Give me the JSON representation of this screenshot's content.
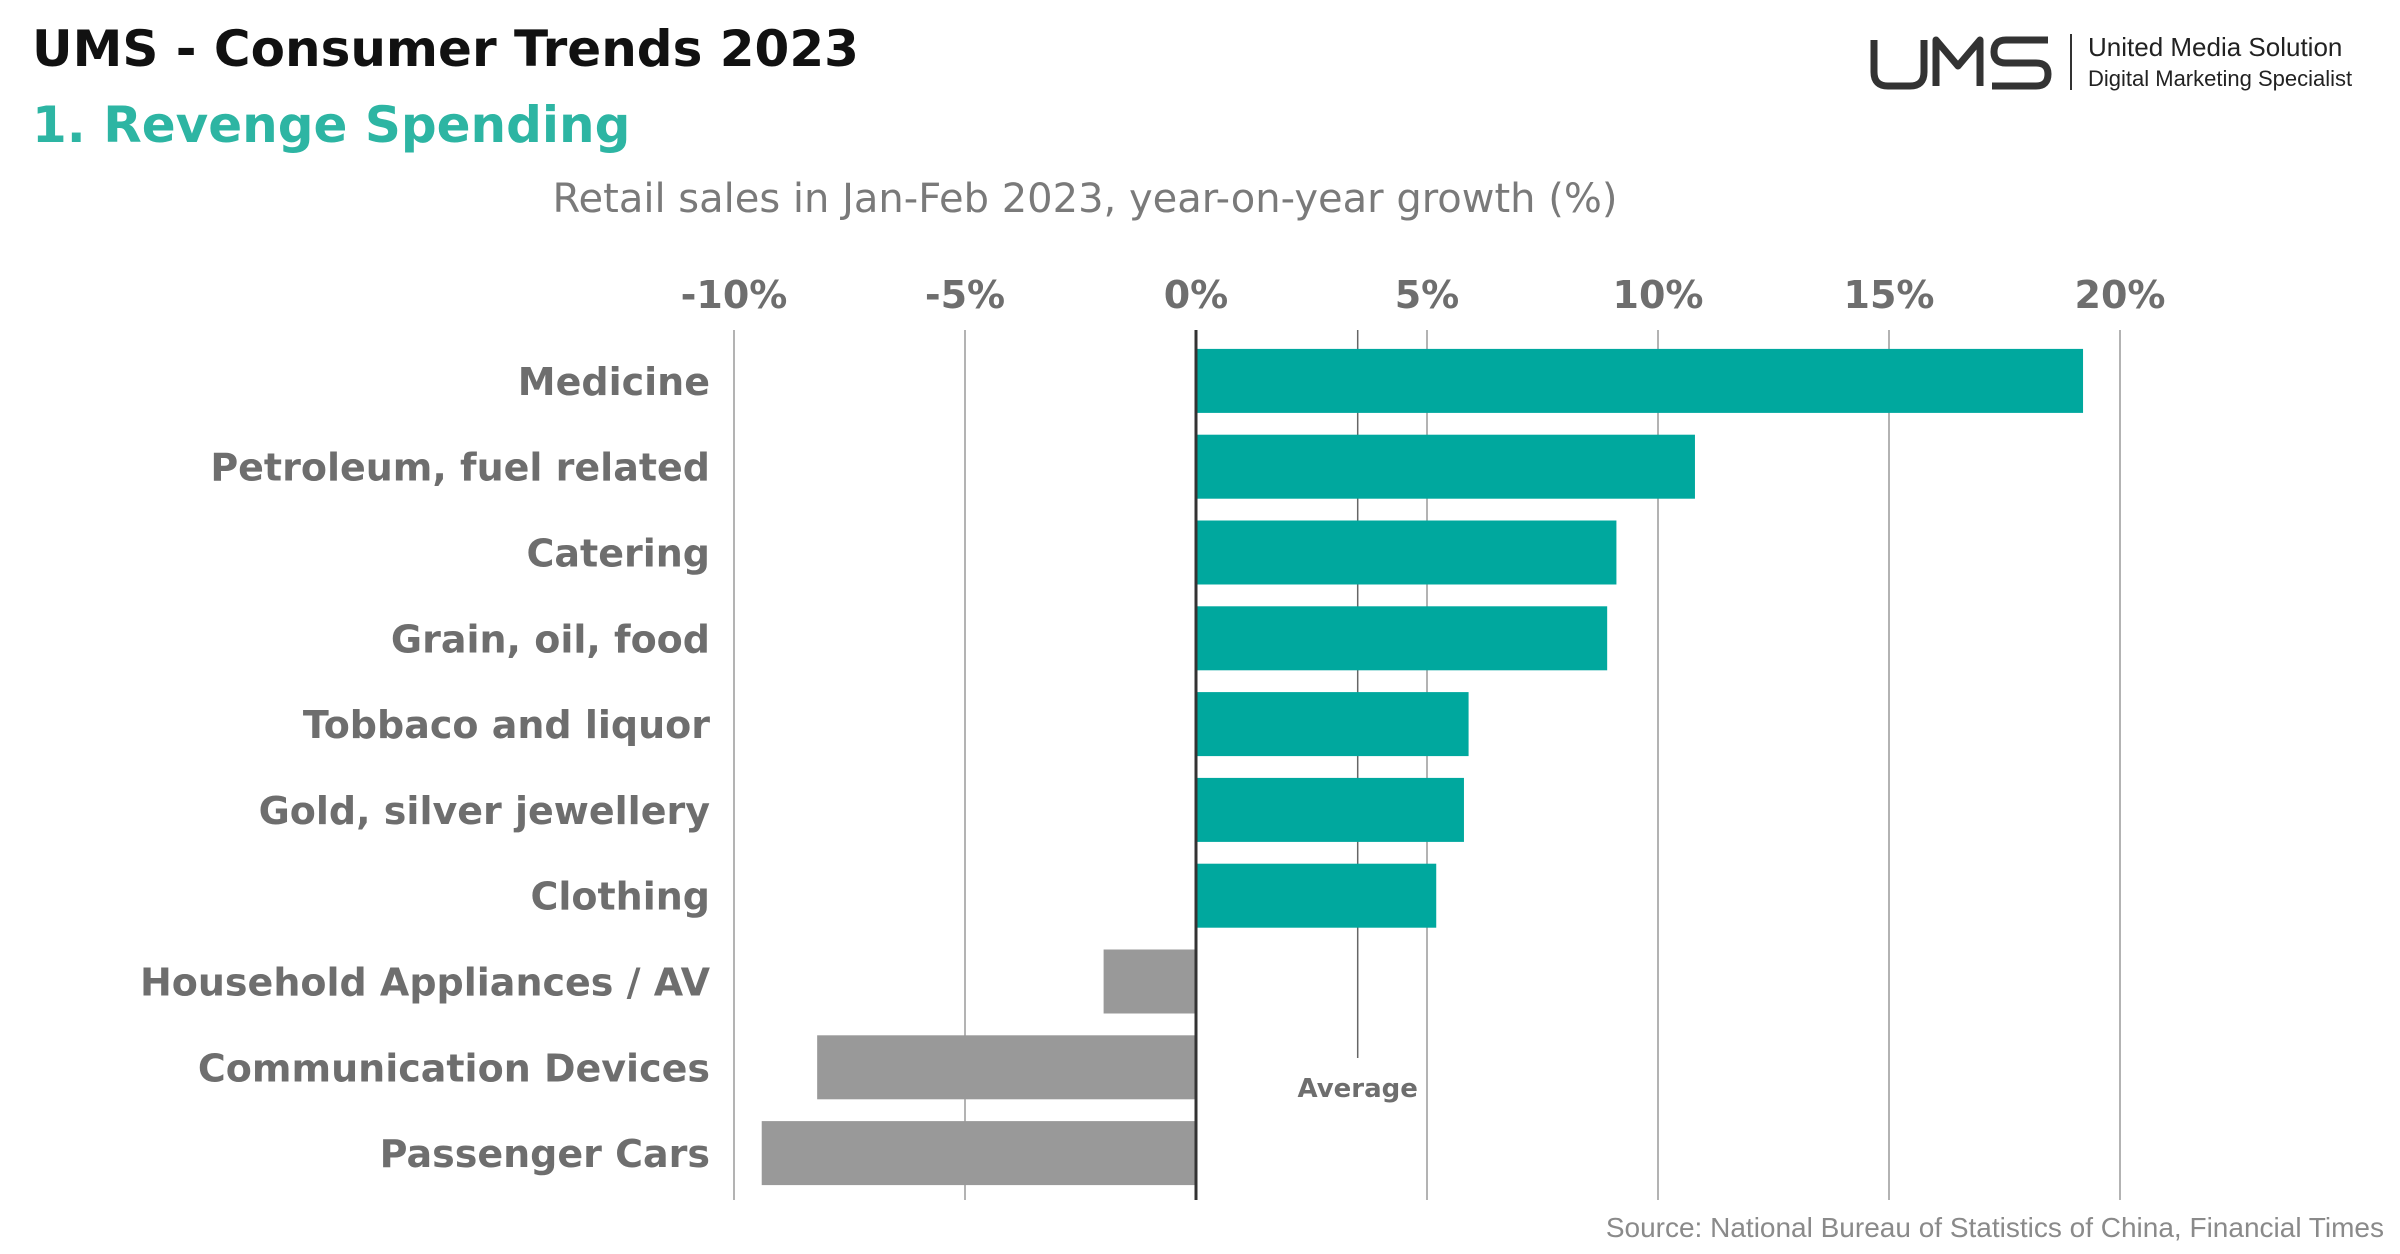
{
  "header": {
    "title": "UMS - Consumer Trends 2023",
    "subtitle": "1. Revenge Spending"
  },
  "logo": {
    "mark": "UMS",
    "name": "United Media Solution",
    "tagline": "Digital Marketing Specialist"
  },
  "footer": {
    "source": "Source: National Bureau of Statistics of China, Financial Times"
  },
  "colors": {
    "positive": "#00a89e",
    "negative": "#999999",
    "accent": "#2db5a3",
    "grid": "#9a9a9a"
  },
  "chart_data": {
    "type": "bar",
    "orientation": "horizontal",
    "title": "Retail sales in Jan-Feb 2023, year-on-year growth (%)",
    "xlabel": "",
    "ylabel": "",
    "xlim": [
      -10,
      20
    ],
    "x_ticks": [
      -10,
      -5,
      0,
      5,
      10,
      15,
      20
    ],
    "x_tick_labels": [
      "-10%",
      "-5%",
      "0%",
      "5%",
      "10%",
      "15%",
      "20%"
    ],
    "x_axis_position": "top",
    "grid": true,
    "categories": [
      "Medicine",
      "Petroleum, fuel related",
      "Catering",
      "Grain, oil, food",
      "Tobbaco and liquor",
      "Gold, silver jewellery",
      "Clothing",
      "Household Appliances / AV",
      "Communication Devices",
      "Passenger Cars"
    ],
    "values": [
      19.2,
      10.8,
      9.1,
      8.9,
      5.9,
      5.8,
      5.2,
      -2.0,
      -8.2,
      -9.4
    ],
    "reference_line": {
      "label": "Average",
      "value": 3.5
    }
  }
}
